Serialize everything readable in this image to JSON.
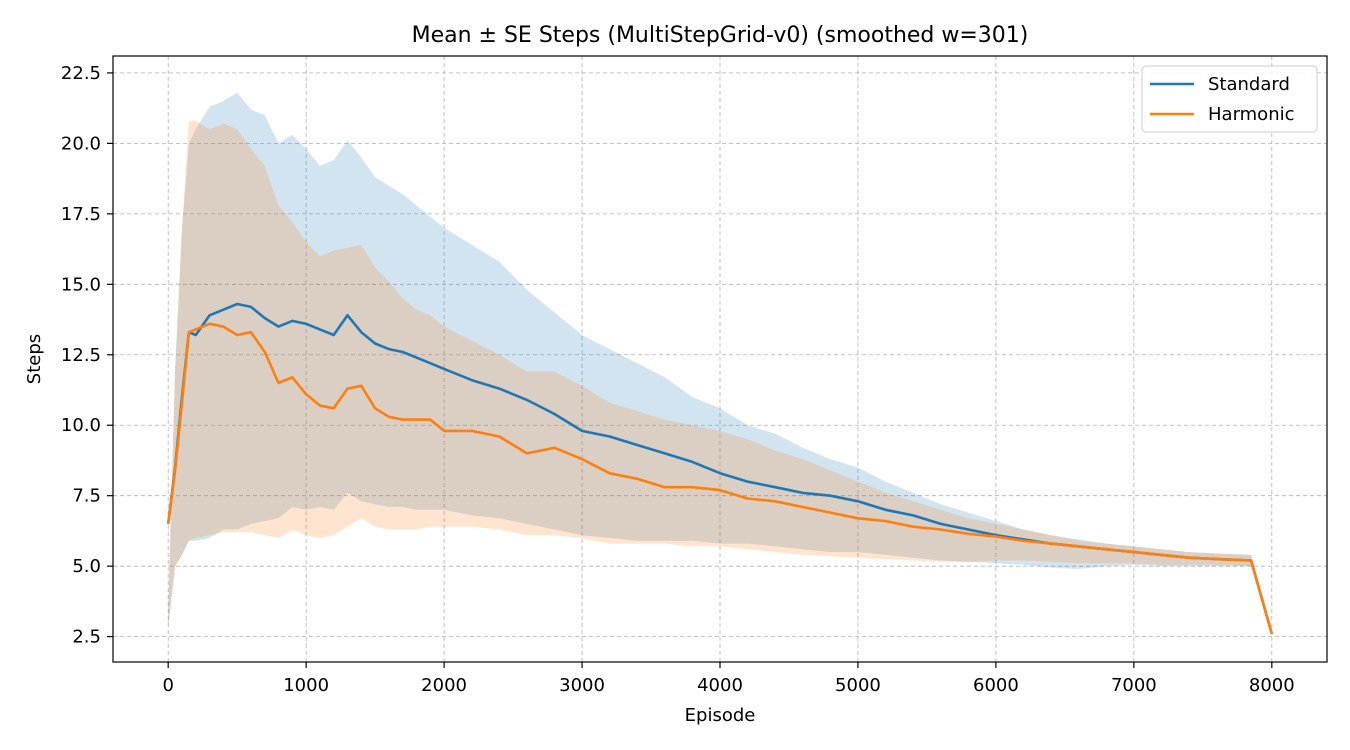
{
  "chart_data": {
    "type": "line",
    "title": "Mean ± SE Steps (MultiStepGrid-v0) (smoothed w=301)",
    "xlabel": "Episode",
    "ylabel": "Steps",
    "xlim": [
      -400,
      8400
    ],
    "ylim": [
      1.6,
      23.1
    ],
    "xticks": [
      0,
      1000,
      2000,
      3000,
      4000,
      5000,
      6000,
      7000,
      8000
    ],
    "yticks": [
      2.5,
      5.0,
      7.5,
      10.0,
      12.5,
      15.0,
      17.5,
      20.0,
      22.5
    ],
    "xtick_labels": [
      "0",
      "1000",
      "2000",
      "3000",
      "4000",
      "5000",
      "6000",
      "7000",
      "8000"
    ],
    "ytick_labels": [
      "2.5",
      "5.0",
      "7.5",
      "10.0",
      "12.5",
      "15.0",
      "17.5",
      "20.0",
      "22.5"
    ],
    "grid": true,
    "legend_position": "top-right",
    "x": [
      0,
      50,
      100,
      150,
      200,
      300,
      400,
      500,
      600,
      700,
      800,
      900,
      1000,
      1100,
      1200,
      1300,
      1400,
      1500,
      1600,
      1700,
      1800,
      1900,
      2000,
      2200,
      2400,
      2600,
      2800,
      3000,
      3200,
      3400,
      3600,
      3800,
      4000,
      4200,
      4400,
      4600,
      4800,
      5000,
      5200,
      5400,
      5600,
      5800,
      6000,
      6200,
      6400,
      6600,
      6800,
      7000,
      7200,
      7400,
      7600,
      7850,
      8000
    ],
    "series": [
      {
        "name": "Standard",
        "color": "#1f77b4",
        "band_color": "#1f77b4",
        "band_opacity": 0.2,
        "mean": [
          6.5,
          8.5,
          11.0,
          13.3,
          13.2,
          13.9,
          14.1,
          14.3,
          14.2,
          13.8,
          13.5,
          13.7,
          13.6,
          13.4,
          13.2,
          13.9,
          13.3,
          12.9,
          12.7,
          12.6,
          12.4,
          12.2,
          12.0,
          11.6,
          11.3,
          10.9,
          10.4,
          9.8,
          9.6,
          9.3,
          9.0,
          8.7,
          8.3,
          8.0,
          7.8,
          7.6,
          7.5,
          7.3,
          7.0,
          6.8,
          6.5,
          6.3,
          6.1,
          5.95,
          5.8,
          5.7,
          5.6,
          5.5,
          5.4,
          5.3,
          5.25,
          5.2,
          2.6
        ],
        "upper": [
          3.5,
          12.0,
          17.0,
          20.0,
          20.5,
          21.3,
          21.5,
          21.8,
          21.2,
          21.0,
          20.0,
          20.3,
          19.8,
          19.2,
          19.4,
          20.1,
          19.5,
          18.8,
          18.5,
          18.2,
          17.8,
          17.4,
          17.0,
          16.4,
          15.8,
          14.8,
          14.0,
          13.2,
          12.7,
          12.2,
          11.7,
          11.0,
          10.6,
          10.0,
          9.7,
          9.2,
          8.8,
          8.5,
          8.0,
          7.6,
          7.2,
          6.9,
          6.6,
          6.3,
          6.1,
          5.95,
          5.8,
          5.7,
          5.6,
          5.5,
          5.45,
          5.4,
          2.7
        ],
        "lower": [
          2.8,
          5.0,
          5.4,
          5.9,
          5.9,
          6.0,
          6.3,
          6.3,
          6.5,
          6.6,
          6.7,
          7.1,
          7.0,
          7.1,
          7.0,
          7.6,
          7.3,
          7.2,
          7.1,
          7.1,
          7.0,
          7.0,
          7.0,
          6.8,
          6.7,
          6.5,
          6.3,
          6.1,
          6.0,
          5.9,
          5.9,
          5.9,
          5.8,
          5.8,
          5.7,
          5.6,
          5.5,
          5.5,
          5.4,
          5.3,
          5.2,
          5.15,
          5.1,
          5.05,
          4.95,
          4.9,
          5.0,
          5.05,
          5.0,
          5.0,
          5.0,
          5.0,
          2.5
        ]
      },
      {
        "name": "Harmonic",
        "color": "#ff7f0e",
        "band_color": "#ff7f0e",
        "band_opacity": 0.2,
        "mean": [
          6.5,
          8.4,
          10.8,
          13.3,
          13.4,
          13.6,
          13.5,
          13.2,
          13.3,
          12.6,
          11.5,
          11.7,
          11.1,
          10.7,
          10.6,
          11.3,
          11.4,
          10.6,
          10.3,
          10.2,
          10.2,
          10.2,
          9.8,
          9.8,
          9.6,
          9.0,
          9.2,
          8.8,
          8.3,
          8.1,
          7.8,
          7.8,
          7.7,
          7.4,
          7.3,
          7.1,
          6.9,
          6.7,
          6.6,
          6.4,
          6.3,
          6.15,
          6.05,
          5.9,
          5.8,
          5.7,
          5.6,
          5.5,
          5.4,
          5.3,
          5.25,
          5.2,
          2.6
        ],
        "upper": [
          3.5,
          12.0,
          17.0,
          20.8,
          20.8,
          20.5,
          20.7,
          20.5,
          19.8,
          19.2,
          17.8,
          17.2,
          16.5,
          16.0,
          16.2,
          16.3,
          16.4,
          15.6,
          15.1,
          14.5,
          14.1,
          13.9,
          13.5,
          13.0,
          12.5,
          11.9,
          11.9,
          11.4,
          10.8,
          10.5,
          10.2,
          10.0,
          9.8,
          9.5,
          9.1,
          8.8,
          8.4,
          8.0,
          7.6,
          7.3,
          7.0,
          6.7,
          6.5,
          6.3,
          6.1,
          5.9,
          5.8,
          5.7,
          5.6,
          5.5,
          5.45,
          5.4,
          2.7
        ],
        "lower": [
          2.8,
          5.0,
          5.4,
          5.9,
          6.0,
          6.1,
          6.2,
          6.2,
          6.2,
          6.1,
          6.0,
          6.3,
          6.1,
          6.0,
          6.1,
          6.4,
          6.7,
          6.4,
          6.3,
          6.3,
          6.3,
          6.4,
          6.4,
          6.4,
          6.3,
          6.1,
          6.1,
          6.0,
          5.8,
          5.8,
          5.8,
          5.7,
          5.7,
          5.6,
          5.5,
          5.4,
          5.35,
          5.3,
          5.25,
          5.2,
          5.15,
          5.15,
          5.2,
          5.2,
          5.15,
          5.1,
          5.1,
          5.1,
          5.05,
          5.05,
          5.05,
          5.0,
          2.5
        ]
      }
    ]
  }
}
